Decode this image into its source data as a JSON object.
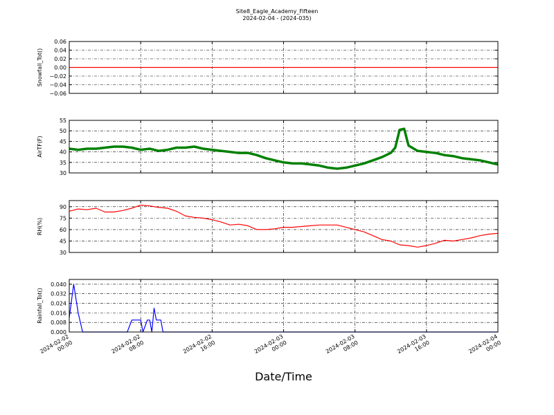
{
  "title": "Site8_Eagle_Academy_Fifteen",
  "subtitle": "2024-02-04 - (2024-035)",
  "chart_data": [
    {
      "type": "line",
      "ylabel": "Snowfall_Tot()",
      "grid": true,
      "xlim": [
        "2024-02-02 00:00",
        "2024-02-04 00:00"
      ],
      "xticks": [
        "2024-02-02 00:00",
        "2024-02-02 08:00",
        "2024-02-02 16:00",
        "2024-02-03 00:00",
        "2024-02-03 08:00",
        "2024-02-03 16:00",
        "2024-02-04 00:00"
      ],
      "ylim": [
        -0.06,
        0.06
      ],
      "yticks": [
        {
          "value": -0.06,
          "label": "−0.06"
        },
        {
          "value": -0.04,
          "label": "−0.04"
        },
        {
          "value": -0.02,
          "label": "−0.02"
        },
        {
          "value": 0,
          "label": "0.00"
        },
        0.02,
        0.04,
        0.06
      ],
      "x": [
        "2024-02-02 00:00",
        "2024-02-04 00:00"
      ],
      "series": [
        {
          "name": "Snowfall_Tot",
          "color": "#ff0000",
          "values": [
            0,
            0
          ]
        }
      ]
    },
    {
      "type": "line",
      "ylabel": "AirTF(F)",
      "grid": true,
      "xlim": [
        "2024-02-02 00:00",
        "2024-02-04 00:00"
      ],
      "xticks": [
        "2024-02-02 00:00",
        "2024-02-02 08:00",
        "2024-02-02 16:00",
        "2024-02-03 00:00",
        "2024-02-03 08:00",
        "2024-02-03 16:00",
        "2024-02-04 00:00"
      ],
      "ylim": [
        30,
        55
      ],
      "yticks": [
        30,
        35,
        40,
        45,
        50,
        55
      ],
      "x": [
        "2024-02-02 00:00",
        "2024-02-02 01:00",
        "2024-02-02 02:00",
        "2024-02-02 03:00",
        "2024-02-02 04:00",
        "2024-02-02 05:00",
        "2024-02-02 06:00",
        "2024-02-02 07:00",
        "2024-02-02 08:00",
        "2024-02-02 09:00",
        "2024-02-02 10:00",
        "2024-02-02 11:00",
        "2024-02-02 12:00",
        "2024-02-02 13:00",
        "2024-02-02 14:00",
        "2024-02-02 15:00",
        "2024-02-02 16:00",
        "2024-02-02 17:00",
        "2024-02-02 18:00",
        "2024-02-02 19:00",
        "2024-02-02 20:00",
        "2024-02-02 21:00",
        "2024-02-02 22:00",
        "2024-02-02 23:00",
        "2024-02-03 00:00",
        "2024-02-03 01:00",
        "2024-02-03 02:00",
        "2024-02-03 03:00",
        "2024-02-03 04:00",
        "2024-02-03 05:00",
        "2024-02-03 06:00",
        "2024-02-03 07:00",
        "2024-02-03 08:00",
        "2024-02-03 09:00",
        "2024-02-03 10:00",
        "2024-02-03 11:00",
        "2024-02-03 12:00",
        "2024-02-03 12:30",
        "2024-02-03 13:00",
        "2024-02-03 13:30",
        "2024-02-03 14:00",
        "2024-02-03 15:00",
        "2024-02-03 16:00",
        "2024-02-03 17:00",
        "2024-02-03 18:00",
        "2024-02-03 19:00",
        "2024-02-03 20:00",
        "2024-02-03 21:00",
        "2024-02-03 22:00",
        "2024-02-03 23:00",
        "2024-02-04 00:00"
      ],
      "series": [
        {
          "name": "AirTF",
          "color": "#008000",
          "values": [
            41.5,
            41,
            41.5,
            41.5,
            42,
            42.5,
            42.5,
            42,
            41,
            41.5,
            40.5,
            41,
            42,
            42,
            42.5,
            41.5,
            41,
            40.5,
            40,
            39.5,
            39.5,
            38.5,
            37,
            36,
            35,
            34.5,
            34.5,
            34,
            33.5,
            32.5,
            32,
            32.5,
            33.5,
            34.5,
            36,
            37.5,
            39.5,
            42,
            50.5,
            51,
            43,
            40.5,
            40,
            39.5,
            38.5,
            38,
            37,
            36.5,
            36,
            35,
            34
          ]
        }
      ]
    },
    {
      "type": "line",
      "ylabel": "RH(%)",
      "grid": true,
      "xlim": [
        "2024-02-02 00:00",
        "2024-02-04 00:00"
      ],
      "xticks": [
        "2024-02-02 00:00",
        "2024-02-02 08:00",
        "2024-02-02 16:00",
        "2024-02-03 00:00",
        "2024-02-03 08:00",
        "2024-02-03 16:00",
        "2024-02-04 00:00"
      ],
      "ylim": [
        30,
        98
      ],
      "yticks": [
        30,
        45,
        60,
        75,
        90
      ],
      "x": [
        "2024-02-02 00:00",
        "2024-02-02 01:00",
        "2024-02-02 02:00",
        "2024-02-02 03:00",
        "2024-02-02 04:00",
        "2024-02-02 05:00",
        "2024-02-02 06:00",
        "2024-02-02 07:00",
        "2024-02-02 08:00",
        "2024-02-02 09:00",
        "2024-02-02 10:00",
        "2024-02-02 11:00",
        "2024-02-02 12:00",
        "2024-02-02 13:00",
        "2024-02-02 14:00",
        "2024-02-02 15:00",
        "2024-02-02 16:00",
        "2024-02-02 17:00",
        "2024-02-02 18:00",
        "2024-02-02 19:00",
        "2024-02-02 20:00",
        "2024-02-02 21:00",
        "2024-02-02 22:00",
        "2024-02-02 23:00",
        "2024-02-03 00:00",
        "2024-02-03 01:00",
        "2024-02-03 02:00",
        "2024-02-03 03:00",
        "2024-02-03 04:00",
        "2024-02-03 05:00",
        "2024-02-03 06:00",
        "2024-02-03 07:00",
        "2024-02-03 08:00",
        "2024-02-03 09:00",
        "2024-02-03 10:00",
        "2024-02-03 11:00",
        "2024-02-03 12:00",
        "2024-02-03 13:00",
        "2024-02-03 14:00",
        "2024-02-03 15:00",
        "2024-02-03 16:00",
        "2024-02-03 17:00",
        "2024-02-03 18:00",
        "2024-02-03 19:00",
        "2024-02-03 20:00",
        "2024-02-03 21:00",
        "2024-02-03 22:00",
        "2024-02-03 23:00",
        "2024-02-04 00:00"
      ],
      "series": [
        {
          "name": "RH",
          "color": "#ff0000",
          "values": [
            84,
            87,
            86,
            88,
            83,
            83,
            85,
            88,
            92,
            91,
            89,
            88,
            84,
            78,
            76,
            75,
            73,
            70,
            66,
            67,
            65,
            60,
            60,
            61,
            63,
            63,
            64,
            65,
            66,
            66,
            66,
            63,
            60,
            57,
            52,
            47,
            45,
            40,
            39,
            37,
            39,
            42,
            46,
            45,
            47,
            49,
            52,
            54,
            55
          ]
        }
      ]
    },
    {
      "type": "line",
      "ylabel": "Rainfall_Tot()",
      "xlabel": "Date/Time",
      "grid": true,
      "xlim": [
        "2024-02-02 00:00",
        "2024-02-04 00:00"
      ],
      "xticks": [
        "2024-02-02 00:00",
        "2024-02-02 08:00",
        "2024-02-02 16:00",
        "2024-02-03 00:00",
        "2024-02-03 08:00",
        "2024-02-03 16:00",
        "2024-02-04 00:00"
      ],
      "ylim": [
        0,
        0.044
      ],
      "yticks": [
        {
          "value": 0,
          "label": "0.000"
        },
        0.008,
        0.016,
        0.024,
        0.032,
        {
          "value": 0.04,
          "label": "0.040"
        }
      ],
      "x": [
        "2024-02-02 00:00",
        "2024-02-02 00:30",
        "2024-02-02 01:00",
        "2024-02-02 01:30",
        "2024-02-02 06:30",
        "2024-02-02 07:00",
        "2024-02-02 07:30",
        "2024-02-02 08:00",
        "2024-02-02 08:15",
        "2024-02-02 08:45",
        "2024-02-02 09:00",
        "2024-02-02 09:15",
        "2024-02-02 09:30",
        "2024-02-02 09:45",
        "2024-02-02 10:15",
        "2024-02-02 10:30",
        "2024-02-04 00:00"
      ],
      "series": [
        {
          "name": "Rainfall_Tot",
          "color": "#0000ff",
          "values": [
            0.012,
            0.04,
            0.016,
            0,
            0,
            0.01,
            0.01,
            0.01,
            0,
            0.01,
            0.01,
            0,
            0.02,
            0.01,
            0.01,
            0,
            0
          ]
        }
      ]
    }
  ]
}
